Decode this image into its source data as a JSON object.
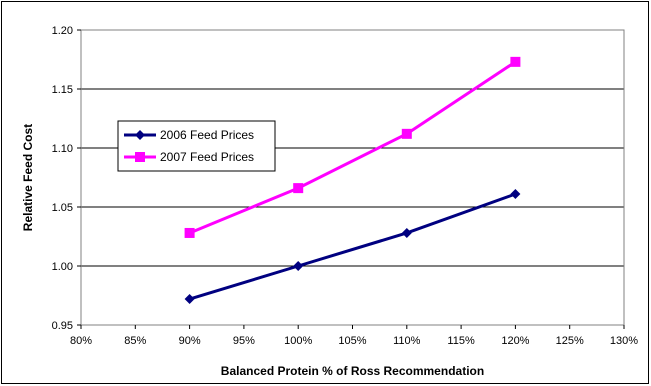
{
  "chart_data": {
    "type": "line",
    "title": "",
    "xlabel": "Balanced Protein % of Ross Recommendation",
    "ylabel": "Relative Feed Cost",
    "x_ticks": [
      "80%",
      "85%",
      "90%",
      "95%",
      "100%",
      "105%",
      "110%",
      "115%",
      "120%",
      "125%",
      "130%"
    ],
    "y_ticks": [
      "0.95",
      "1.00",
      "1.05",
      "1.10",
      "1.15",
      "1.20"
    ],
    "xlim": [
      80,
      130
    ],
    "ylim": [
      0.95,
      1.2
    ],
    "grid": "horizontal",
    "legend_position": "left-center",
    "series": [
      {
        "name": "2006 Feed Prices",
        "color": "#000080",
        "marker": "diamond",
        "x": [
          90,
          100,
          110,
          120
        ],
        "y": [
          0.972,
          1.0,
          1.028,
          1.061
        ]
      },
      {
        "name": "2007 Feed Prices",
        "color": "#FF00FF",
        "marker": "square",
        "x": [
          90,
          100,
          110,
          120
        ],
        "y": [
          1.028,
          1.066,
          1.112,
          1.173
        ]
      }
    ]
  }
}
